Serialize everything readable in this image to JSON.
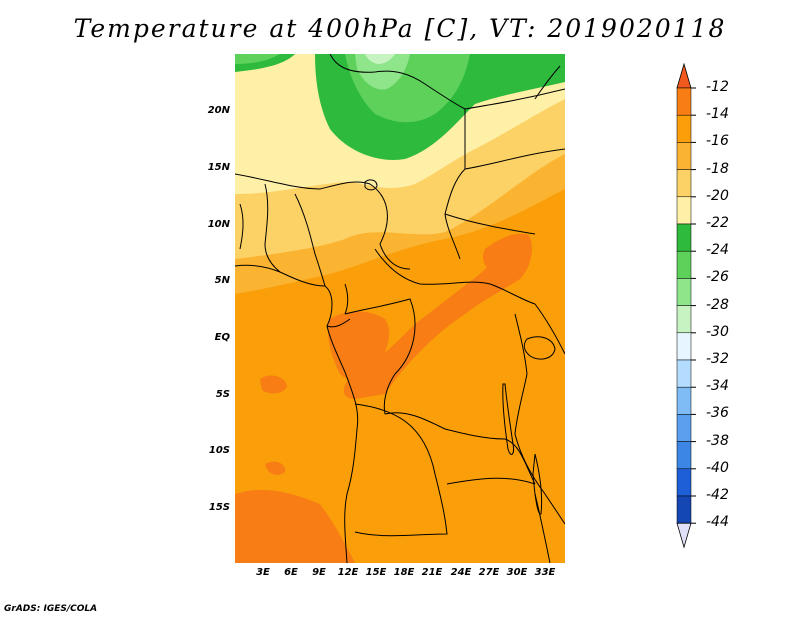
{
  "title": "Temperature at 400hPa [C], VT: 2019020118",
  "credit": "GrADS: IGES/COLA",
  "chart_data": {
    "type": "heatmap",
    "title": "Temperature at 400hPa [C], VT: 2019020118",
    "variable": "Temperature at 400hPa",
    "units": "C",
    "valid_time": "2019020118",
    "lon_range": [
      0,
      35
    ],
    "lat_range": [
      -20,
      24.5
    ],
    "lat_ticks": [
      "20N",
      "15N",
      "10N",
      "5N",
      "EQ",
      "5S",
      "10S",
      "15S"
    ],
    "lat_values": [
      20,
      15,
      10,
      5,
      0,
      -5,
      -10,
      -15
    ],
    "lon_ticks": [
      "3E",
      "6E",
      "9E",
      "12E",
      "15E",
      "18E",
      "21E",
      "24E",
      "27E",
      "30E",
      "33E"
    ],
    "lon_values": [
      3,
      6,
      9,
      12,
      15,
      18,
      21,
      24,
      27,
      30,
      33
    ],
    "colorbar": {
      "labels": [
        "-12",
        "-14",
        "-16",
        "-18",
        "-20",
        "-22",
        "-24",
        "-26",
        "-28",
        "-30",
        "-32",
        "-34",
        "-36",
        "-38",
        "-40",
        "-42",
        "-44"
      ],
      "colors": [
        "#f05a1e",
        "#f77d14",
        "#fa9e0a",
        "#fbb432",
        "#fcd266",
        "#fff0a8",
        "#2eba3c",
        "#5ed15a",
        "#8fe58a",
        "#c7f3c3",
        "#e6f5ff",
        "#b4dcff",
        "#7fbcf5",
        "#5aa0ef",
        "#3c86e6",
        "#1e5fd8",
        "#1446b4",
        "#0c1a78"
      ]
    }
  }
}
